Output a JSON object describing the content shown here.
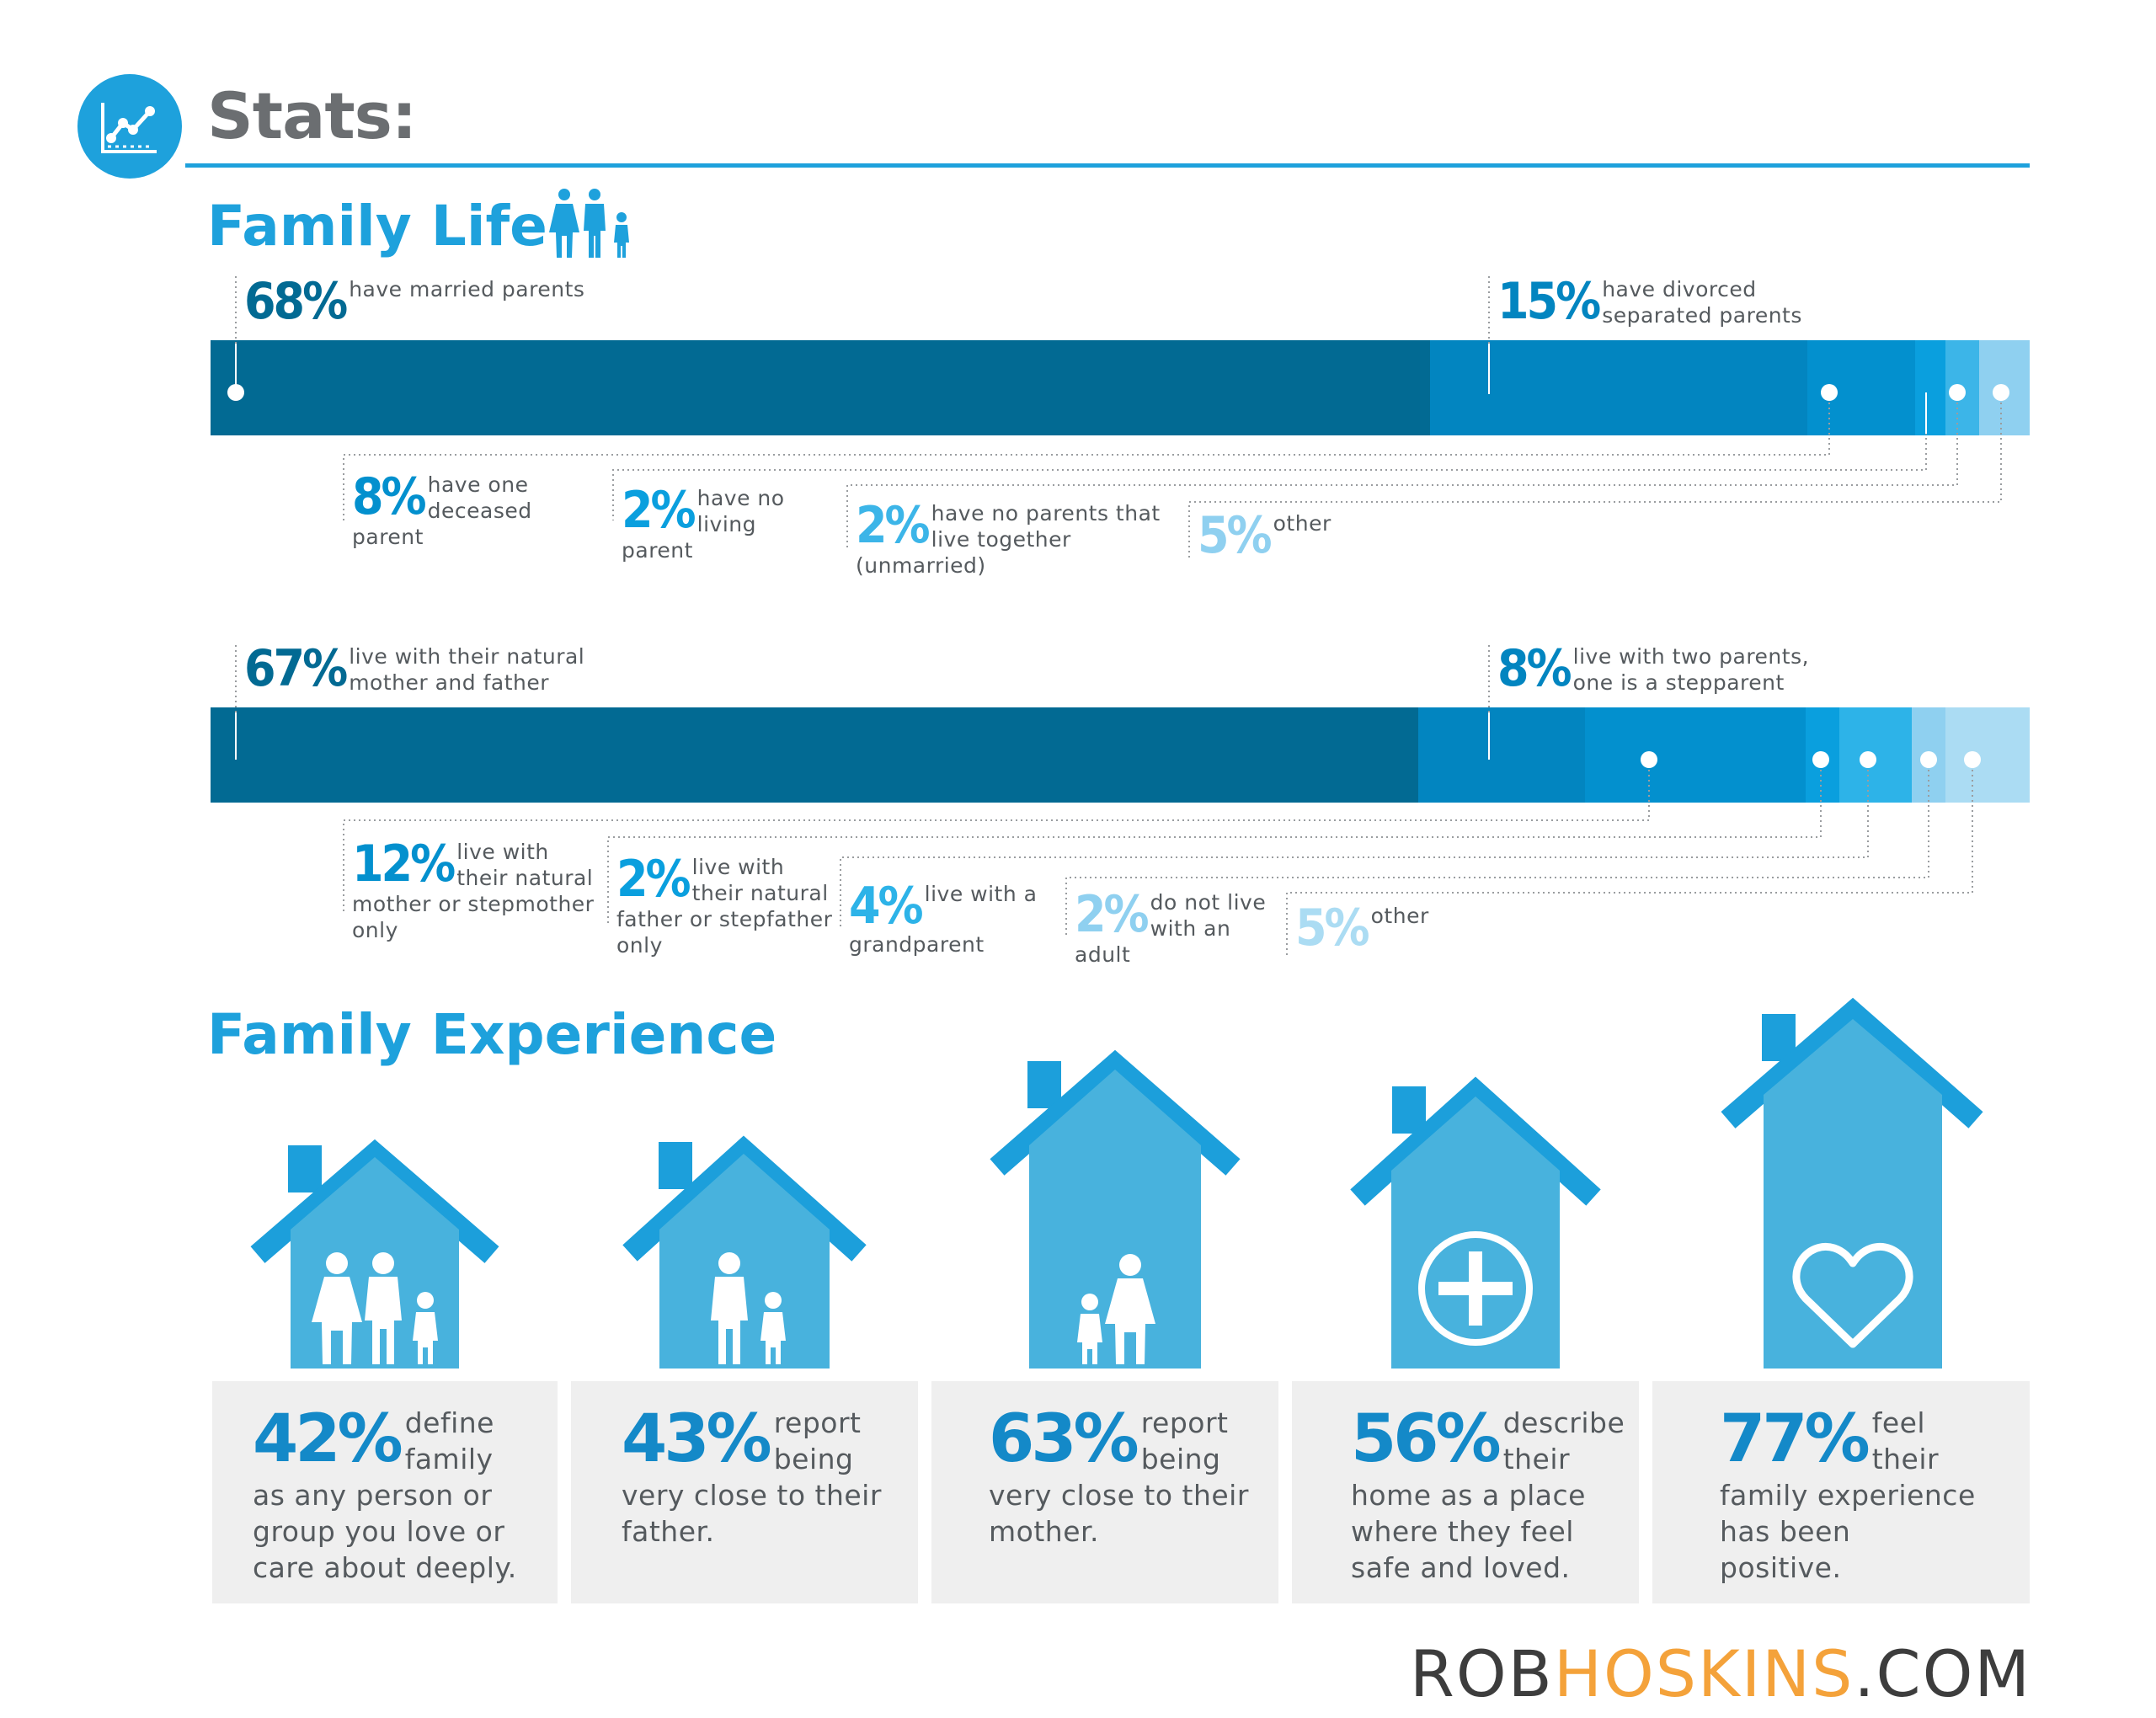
{
  "header": {
    "title": "Stats:",
    "chart_icon": "line-chart-icon"
  },
  "sections": {
    "family_life": {
      "title": "Family Life",
      "icon": "family-icon"
    },
    "family_experience": {
      "title": "Family Experience"
    }
  },
  "colors": {
    "s1": "#026a93",
    "s2": "#0285c0",
    "s3": "#0497d9",
    "s4": "#2db3e8",
    "s5": "#8fd0f0",
    "s6": "#abdcf3"
  },
  "chart_data": [
    {
      "type": "bar",
      "title": "",
      "series": [
        {
          "value": 68,
          "pct": "68%",
          "label": "have married parents"
        },
        {
          "value": 15,
          "pct": "15%",
          "label": "have divorced separated parents"
        },
        {
          "value": 8,
          "pct": "8%",
          "label": "have one deceased parent"
        },
        {
          "value": 2,
          "pct": "2%",
          "label": "have no living parent"
        },
        {
          "value": 2,
          "pct": "2%",
          "label": "have no parents that live together (unmarried)"
        },
        {
          "value": 5,
          "pct": "5%",
          "label": "other"
        }
      ]
    },
    {
      "type": "bar",
      "title": "",
      "series": [
        {
          "value": 67,
          "pct": "67%",
          "label": "live with their natural mother and father"
        },
        {
          "value": 8,
          "pct": "8%",
          "label": "live with two parents, one is a stepparent"
        },
        {
          "value": 12,
          "pct": "12%",
          "label": "live with their natural mother or stepmother only"
        },
        {
          "value": 2,
          "pct": "2%",
          "label": "live with their natural father or stepfather only"
        },
        {
          "value": 4,
          "pct": "4%",
          "label": "live with a grandparent"
        },
        {
          "value": 2,
          "pct": "2%",
          "label": "do not live with an adult"
        },
        {
          "value": 5,
          "pct": "5%",
          "label": "other"
        }
      ]
    },
    {
      "type": "table",
      "title": "",
      "items": [
        {
          "value": 42,
          "pct": "42%",
          "text": "define family as any person or group you love or care about deeply.",
          "icon": "house-family-icon"
        },
        {
          "value": 43,
          "pct": "43%",
          "text": "report being very close to their father.",
          "icon": "house-father-child-icon"
        },
        {
          "value": 63,
          "pct": "63%",
          "text": "report being very close to their mother.",
          "icon": "house-mother-child-icon"
        },
        {
          "value": 56,
          "pct": "56%",
          "text": "describe their home as a place where they feel safe and loved.",
          "icon": "house-plus-icon"
        },
        {
          "value": 77,
          "pct": "77%",
          "text": "feel their family experience has been positive.",
          "icon": "house-heart-icon"
        }
      ]
    }
  ],
  "footer": {
    "rob": "ROB",
    "hoskins": "HOSKINS",
    "com": ".COM"
  }
}
